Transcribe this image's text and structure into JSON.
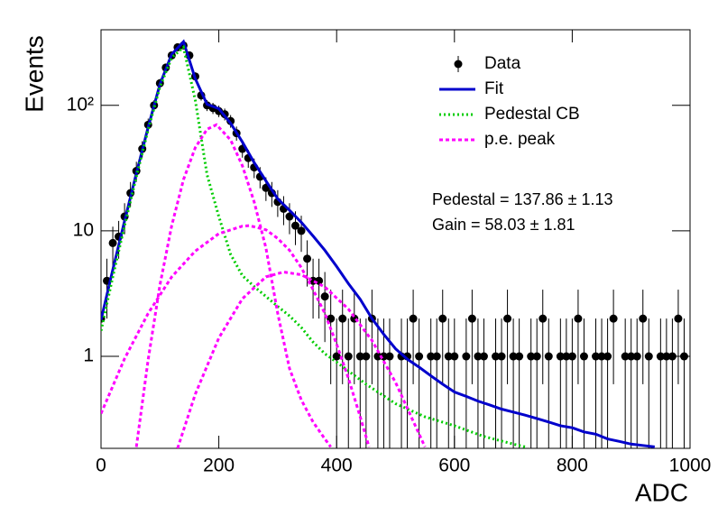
{
  "chart_data": {
    "type": "scatter",
    "xlabel": "ADC",
    "ylabel": "Events",
    "log_y": true,
    "xlim": [
      0,
      1000
    ],
    "ylim": [
      0.185,
      400
    ],
    "xticks": [
      0,
      200,
      400,
      600,
      800,
      1000
    ],
    "yticks": [
      1,
      10,
      {
        "value": 100,
        "label": "10²"
      }
    ],
    "legend": "upper right",
    "data": {
      "name": "Data",
      "color": "#000000",
      "x": [
        0,
        10,
        20,
        30,
        40,
        50,
        60,
        70,
        80,
        90,
        100,
        110,
        120,
        130,
        140,
        150,
        160,
        170,
        180,
        190,
        200,
        210,
        220,
        230,
        240,
        250,
        260,
        270,
        280,
        290,
        300,
        310,
        320,
        330,
        340,
        350,
        360,
        370,
        380,
        390,
        400,
        410,
        420,
        430,
        440,
        450,
        460,
        470,
        480,
        490,
        500,
        510,
        520,
        530,
        540,
        550,
        560,
        570,
        580,
        590,
        600,
        610,
        620,
        630,
        640,
        650,
        660,
        670,
        680,
        690,
        700,
        710,
        720,
        730,
        740,
        750,
        760,
        770,
        780,
        790,
        800,
        810,
        820,
        830,
        840,
        850,
        860,
        870,
        880,
        890,
        900,
        910,
        920,
        930,
        940,
        950,
        960,
        970,
        980,
        990
      ],
      "values": [
        2,
        4,
        8,
        9,
        13,
        20,
        30,
        45,
        70,
        100,
        150,
        200,
        250,
        290,
        300,
        250,
        170,
        120,
        100,
        95,
        90,
        85,
        75,
        60,
        45,
        38,
        32,
        27,
        22,
        20,
        17,
        15,
        13,
        11,
        10,
        6,
        4,
        4,
        3,
        2,
        1,
        2,
        1,
        2,
        1,
        1,
        2,
        1,
        1,
        1,
        0,
        1,
        1,
        2,
        1,
        0,
        1,
        1,
        2,
        1,
        1,
        0,
        1,
        2,
        1,
        1,
        0,
        1,
        1,
        2,
        1,
        1,
        0,
        1,
        1,
        2,
        1,
        0,
        1,
        1,
        1,
        2,
        1,
        0,
        1,
        1,
        1,
        2,
        0,
        1,
        1,
        1,
        2,
        1,
        0,
        1,
        1,
        1,
        2,
        1
      ],
      "errors": [
        1.4,
        2,
        2.8,
        3,
        3.6,
        4.5,
        5.5,
        6.7,
        8.4,
        10,
        12.2,
        14.1,
        15.8,
        17,
        17.3,
        15.8,
        13,
        11,
        10,
        9.7,
        9.5,
        9.2,
        8.7,
        7.7,
        6.7,
        6.2,
        5.7,
        5.2,
        4.7,
        4.5,
        4.1,
        3.9,
        3.6,
        3.3,
        3.2,
        2.4,
        2,
        2,
        1.7,
        1.4,
        1,
        1.4,
        1,
        1.4,
        1,
        1,
        1.4,
        1,
        1,
        1,
        0,
        1,
        1,
        1.4,
        1,
        0,
        1,
        1,
        1.4,
        1,
        1,
        0,
        1,
        1.4,
        1,
        1,
        0,
        1,
        1,
        1.4,
        1,
        1,
        0,
        1,
        1,
        1.4,
        1,
        0,
        1,
        1,
        1,
        1.4,
        1,
        0,
        1,
        1,
        1,
        1.4,
        0,
        1,
        1,
        1,
        1.4,
        1,
        0,
        1,
        1,
        1,
        1.4,
        1
      ]
    },
    "series": [
      {
        "name": "Fit",
        "color": "#0000cc",
        "style": "solid",
        "curves": [
          {
            "x": [
              0,
              20,
              40,
              60,
              80,
              100,
              120,
              140,
              160,
              180,
              200,
              220,
              240,
              260,
              280,
              300,
              320,
              340,
              360,
              380,
              400,
              420,
              440,
              460,
              480,
              500,
              520,
              540,
              560,
              580,
              600,
              620,
              640,
              660,
              680,
              700,
              720,
              740,
              760,
              780,
              800,
              820,
              840,
              860,
              880,
              900,
              920,
              940
            ],
            "values": [
              1.95,
              4.9,
              12,
              28.7,
              67,
              147,
              255,
              321,
              163,
              102,
              94,
              72,
              51,
              35,
              25,
              18,
              14.6,
              11.7,
              9.1,
              7,
              5.2,
              3.8,
              2.85,
              2,
              1.5,
              1.15,
              0.95,
              0.82,
              0.7,
              0.6,
              0.52,
              0.48,
              0.44,
              0.41,
              0.38,
              0.36,
              0.34,
              0.32,
              0.3,
              0.28,
              0.27,
              0.25,
              0.24,
              0.22,
              0.21,
              0.2,
              0.195,
              0.19
            ]
          }
        ]
      },
      {
        "name": "Pedestal CB",
        "color": "#00cc00",
        "style": "dotted",
        "curves": [
          {
            "x": [
              0,
              20,
              40,
              60,
              80,
              100,
              120,
              140,
              160,
              180,
              200,
              220,
              240,
              260,
              280,
              300,
              320,
              340,
              360,
              380,
              400,
              450,
              500,
              550,
              600,
              650,
              700,
              720
            ],
            "values": [
              1.6,
              4.3,
              11,
              27,
              64,
              140,
              240,
              290,
              110,
              28,
              13,
              6.5,
              4.4,
              3.6,
              3,
              2.5,
              2.1,
              1.7,
              1.3,
              1.05,
              0.9,
              0.6,
              0.42,
              0.33,
              0.28,
              0.23,
              0.2,
              0.19
            ]
          }
        ]
      },
      {
        "name": "p.e. peak",
        "color": "#ff00ff",
        "style": "dashed",
        "curves": [
          {
            "x": [
              60,
              80,
              100,
              120,
              140,
              160,
              180,
              196,
              220,
              240,
              260,
              280,
              300,
              320,
              340,
              360,
              380,
              390
            ],
            "values": [
              0.19,
              0.94,
              3.7,
              11,
              25.6,
              46,
              64.5,
              70,
              53,
              33,
              17,
              7.3,
              2.2,
              0.8,
              0.45,
              0.3,
              0.22,
              0.19
            ]
          },
          {
            "x": [
              0,
              40,
              80,
              120,
              160,
              200,
              240,
              252,
              280,
              300,
              320,
              340,
              360,
              380,
              400,
              420,
              440,
              455
            ],
            "values": [
              0.35,
              0.96,
              2.2,
              4.3,
              6.9,
              9.5,
              10.9,
              11,
              10.2,
              8.7,
              7,
              5.1,
              3.4,
              2.2,
              1.25,
              0.67,
              0.33,
              0.19
            ]
          },
          {
            "x": [
              130,
              160,
              200,
              240,
              280,
              310,
              340,
              380,
              420,
              460,
              500,
              550
            ],
            "values": [
              0.185,
              0.5,
              1.4,
              2.88,
              4.3,
              4.7,
              4.47,
              3.57,
              2.38,
              1.34,
              0.62,
              0.19
            ]
          }
        ]
      }
    ],
    "annotations": [
      "Pedestal = 137.86 ± 1.13",
      "Gain = 58.03 ± 1.81"
    ]
  }
}
